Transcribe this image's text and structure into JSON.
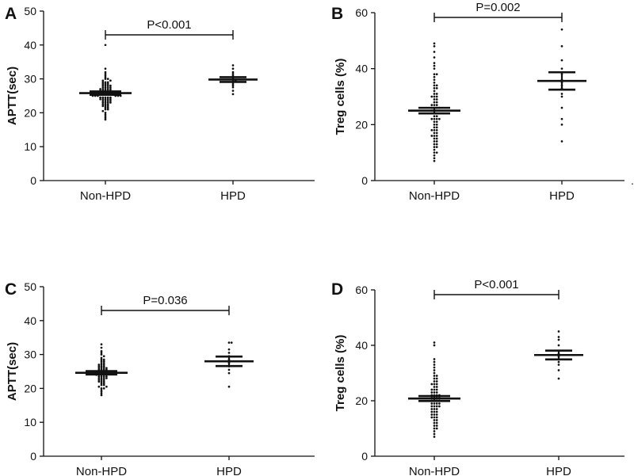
{
  "figure": {
    "stray_mark": "."
  },
  "chart_data": [
    {
      "panel": "A",
      "type": "scatter",
      "title": "",
      "xlabel": "",
      "ylabel": "APTT(sec)",
      "ylim": [
        0,
        50
      ],
      "yticks": [
        0,
        10,
        20,
        30,
        40,
        50
      ],
      "categories": [
        "Non-HPD",
        "HPD"
      ],
      "p_value": "P<0.001",
      "series": [
        {
          "name": "Non-HPD",
          "mean": 25.8,
          "sem_low": 25.3,
          "sem_high": 26.3,
          "values": [
            40,
            33,
            32,
            31.5,
            31,
            30.5,
            30,
            30,
            29.5,
            29.5,
            29,
            29,
            29,
            28.5,
            28.5,
            28.5,
            28,
            28,
            28,
            28,
            27.5,
            27.5,
            27.5,
            27.5,
            27,
            27,
            27,
            27,
            27,
            26.5,
            26.5,
            26.5,
            26.5,
            26.5,
            26,
            26,
            26,
            26,
            26,
            26,
            25.5,
            25.5,
            25.5,
            25.5,
            25.5,
            25.5,
            25,
            25,
            25,
            25,
            25,
            25,
            24.5,
            24.5,
            24.5,
            24.5,
            24.5,
            24,
            24,
            24,
            24,
            24,
            23.5,
            23.5,
            23.5,
            23.5,
            23,
            23,
            23,
            23,
            22.5,
            22.5,
            22.5,
            22,
            22,
            22,
            21.5,
            21.5,
            21,
            21,
            20.5,
            20,
            19.5,
            19,
            18.5,
            18
          ]
        },
        {
          "name": "HPD",
          "mean": 29.8,
          "sem_low": 29.1,
          "sem_high": 30.5,
          "values": [
            34,
            33,
            32,
            31.5,
            31,
            30.5,
            30,
            29.5,
            29,
            28.5,
            28,
            27.5,
            26.5,
            25.5
          ]
        }
      ]
    },
    {
      "panel": "B",
      "type": "scatter",
      "title": "",
      "xlabel": "",
      "ylabel": "Treg cells (%)",
      "ylim": [
        0,
        60
      ],
      "yticks": [
        0,
        20,
        40,
        60
      ],
      "categories": [
        "Non-HPD",
        "HPD"
      ],
      "p_value": "P=0.002",
      "series": [
        {
          "name": "Non-HPD",
          "mean": 25.0,
          "sem_low": 24.0,
          "sem_high": 26.0,
          "values": [
            49,
            48,
            46,
            44,
            42,
            41,
            40,
            38,
            37,
            36,
            35,
            34,
            33,
            33,
            32,
            31,
            31,
            30,
            30,
            29,
            29,
            28,
            28,
            27,
            27,
            27,
            26,
            26,
            26,
            25,
            25,
            25,
            24,
            24,
            24,
            23,
            23,
            22,
            22,
            22,
            21,
            21,
            20,
            20,
            19,
            19,
            18,
            18,
            17,
            17,
            16,
            16,
            15,
            15,
            14,
            14,
            13,
            13,
            12,
            11,
            10,
            9,
            8,
            7,
            38,
            34,
            30,
            26,
            22,
            18,
            16,
            12,
            10
          ]
        },
        {
          "name": "HPD",
          "mean": 35.6,
          "sem_low": 32.5,
          "sem_high": 38.7,
          "values": [
            54,
            48,
            43,
            40,
            38,
            36,
            35,
            34,
            33,
            31,
            30,
            26,
            22,
            20,
            14
          ]
        }
      ]
    },
    {
      "panel": "C",
      "type": "scatter",
      "title": "",
      "xlabel": "",
      "ylabel": "APTT(sec)",
      "ylim": [
        0,
        50
      ],
      "yticks": [
        0,
        10,
        20,
        30,
        40,
        50
      ],
      "categories": [
        "Non-HPD",
        "HPD"
      ],
      "p_value": "P=0.036",
      "series": [
        {
          "name": "Non-HPD",
          "mean": 24.6,
          "sem_low": 24.1,
          "sem_high": 25.1,
          "values": [
            33,
            32,
            31,
            30.5,
            30,
            29.5,
            29,
            28.5,
            28.5,
            28,
            28,
            27.5,
            27.5,
            27,
            27,
            27,
            26.5,
            26.5,
            26.5,
            26,
            26,
            26,
            26,
            25.5,
            25.5,
            25.5,
            25.5,
            25,
            25,
            25,
            25,
            25,
            24.5,
            24.5,
            24.5,
            24.5,
            24.5,
            24,
            24,
            24,
            24,
            24,
            23.5,
            23.5,
            23.5,
            23.5,
            23,
            23,
            23,
            23,
            22.5,
            22.5,
            22.5,
            22,
            22,
            22,
            21.5,
            21.5,
            21,
            21,
            20.5,
            20.5,
            20,
            20,
            19.5,
            19,
            18.5,
            18
          ]
        },
        {
          "name": "HPD",
          "mean": 28.0,
          "sem_low": 26.6,
          "sem_high": 29.4,
          "values": [
            33.5,
            33.5,
            31.5,
            30.5,
            29.5,
            28.5,
            28,
            27.5,
            26.5,
            25.5,
            24.5,
            20.5
          ]
        }
      ]
    },
    {
      "panel": "D",
      "type": "scatter",
      "title": "",
      "xlabel": "",
      "ylabel": "Treg cells (%)",
      "ylim": [
        0,
        60
      ],
      "yticks": [
        0,
        20,
        40,
        60
      ],
      "categories": [
        "Non-HPD",
        "HPD"
      ],
      "p_value": "P<0.001",
      "series": [
        {
          "name": "Non-HPD",
          "mean": 20.8,
          "sem_low": 19.9,
          "sem_high": 21.7,
          "values": [
            41,
            40,
            35,
            34,
            33,
            32,
            31,
            30,
            29,
            29,
            28,
            28,
            27,
            27,
            26,
            26,
            25,
            25,
            24,
            24,
            24,
            23,
            23,
            23,
            22,
            22,
            22,
            21,
            21,
            21,
            21,
            20,
            20,
            20,
            20,
            19,
            19,
            19,
            19,
            18,
            18,
            18,
            17,
            17,
            17,
            16,
            16,
            16,
            15,
            15,
            15,
            14,
            14,
            13,
            13,
            12,
            12,
            11,
            11,
            10,
            9,
            8,
            7,
            26,
            22,
            18,
            14,
            10
          ]
        },
        {
          "name": "HPD",
          "mean": 36.5,
          "sem_low": 34.9,
          "sem_high": 38.1,
          "values": [
            45,
            43,
            42,
            40,
            38,
            37,
            36,
            35,
            34,
            33,
            31,
            28
          ]
        }
      ]
    }
  ]
}
